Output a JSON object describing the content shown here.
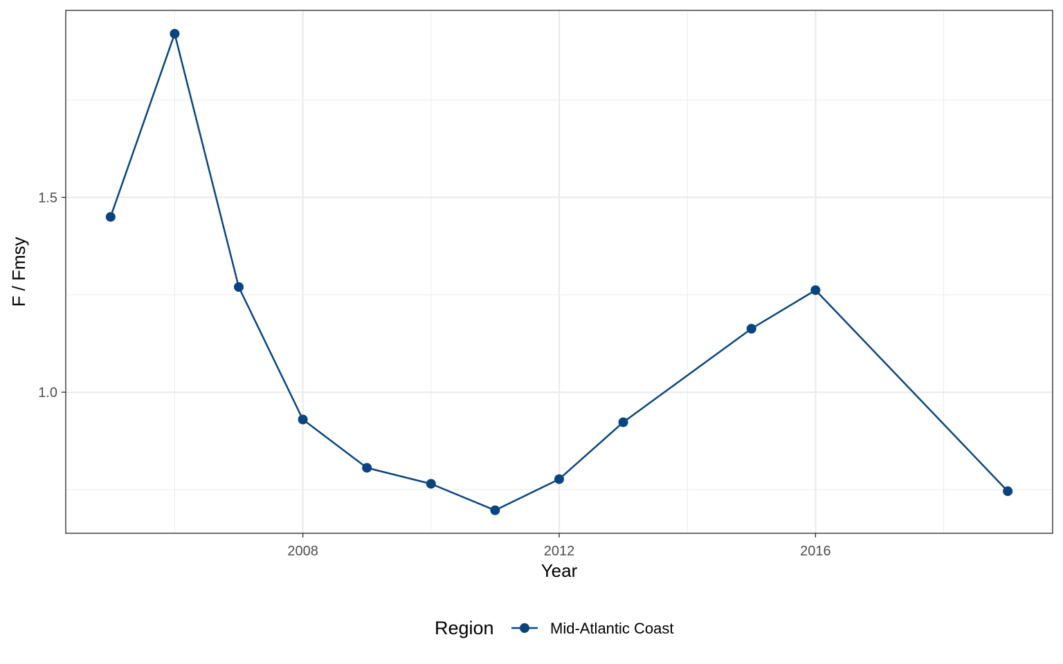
{
  "chart_data": {
    "type": "line",
    "xlabel": "Year",
    "ylabel": "F / Fmsy",
    "x_ticks": [
      2008,
      2012,
      2016
    ],
    "y_ticks": [
      1.0,
      1.5
    ],
    "xlim": [
      2004.3,
      2019.7
    ],
    "ylim": [
      0.638,
      1.98
    ],
    "grid": true,
    "legend": {
      "title": "Region",
      "position": "bottom"
    },
    "series": [
      {
        "name": "Mid-Atlantic Coast",
        "color": "#08457E",
        "x": [
          2005,
          2006,
          2007,
          2008,
          2009,
          2010,
          2011,
          2012,
          2013,
          2015,
          2016,
          2019
        ],
        "y": [
          1.45,
          1.92,
          1.27,
          0.93,
          0.806,
          0.765,
          0.697,
          0.777,
          0.923,
          1.163,
          1.262,
          0.746
        ]
      }
    ]
  }
}
